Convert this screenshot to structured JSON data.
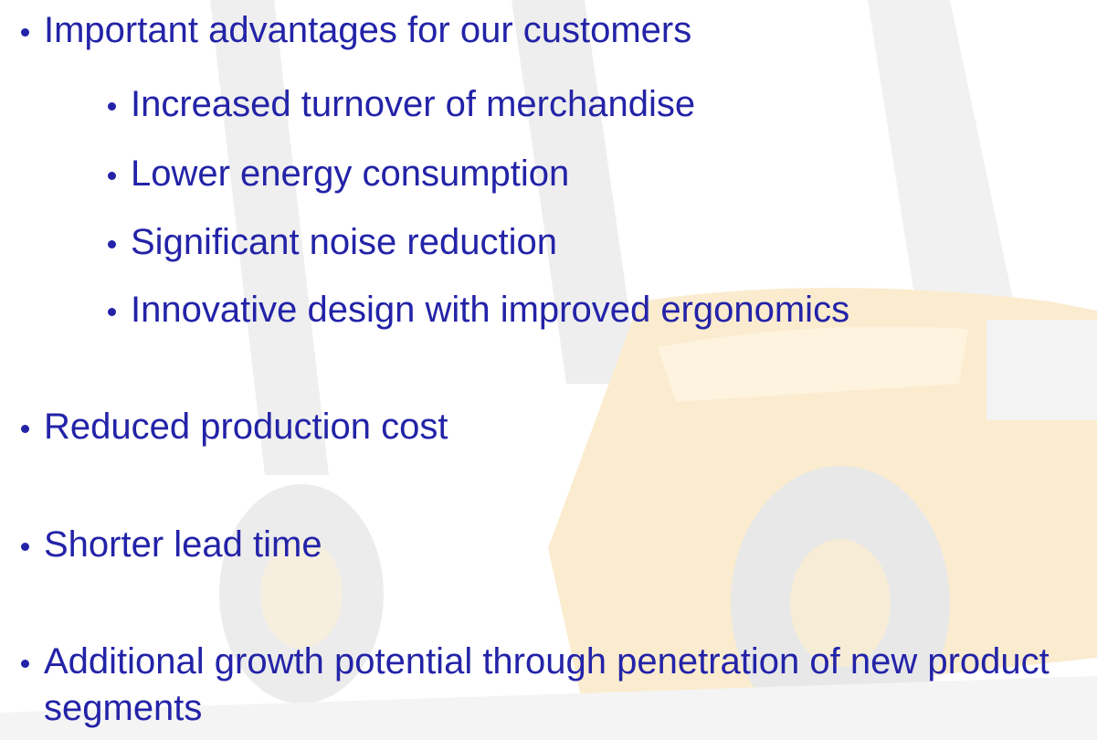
{
  "items": [
    {
      "text": "Important advantages for our customers",
      "subitems": [
        "Increased turnover of merchandise",
        "Lower energy consumption",
        "Significant noise reduction",
        "Innovative design with improved ergonomics"
      ]
    },
    {
      "text": "Reduced production cost"
    },
    {
      "text": "Shorter lead time"
    },
    {
      "text": "Additional growth potential through penetration of new product segments"
    }
  ]
}
